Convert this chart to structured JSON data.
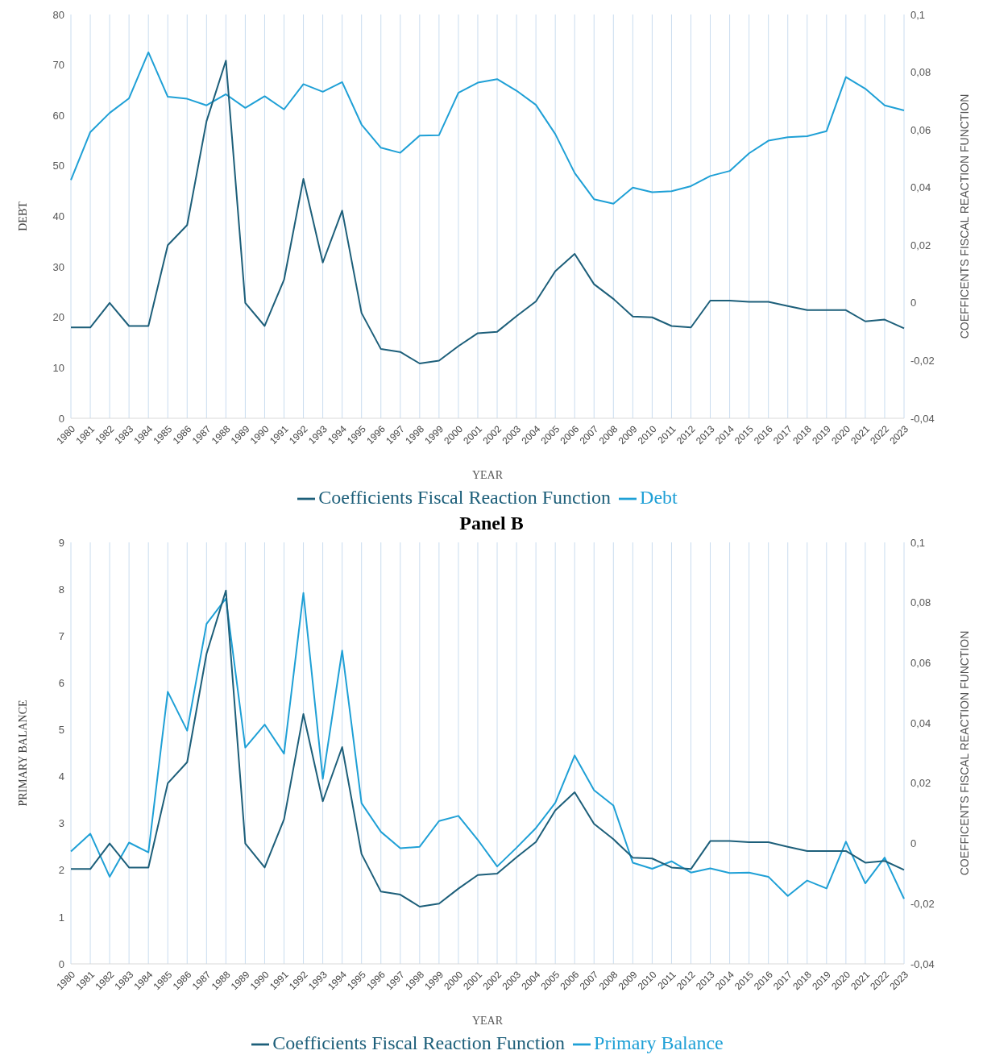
{
  "chart_data": [
    {
      "type": "line",
      "xlabel": "YEAR",
      "ylabel": "DEBT",
      "y2label": "COEFFICENTS FISCAL REACTION FUNCTION",
      "categories": [
        "1980",
        "1981",
        "1982",
        "1983",
        "1984",
        "1985",
        "1986",
        "1987",
        "1988",
        "1989",
        "1990",
        "1991",
        "1992",
        "1993",
        "1994",
        "1995",
        "1996",
        "1997",
        "1998",
        "1999",
        "2000",
        "2001",
        "2002",
        "2003",
        "2004",
        "2005",
        "2006",
        "2007",
        "2008",
        "2009",
        "2010",
        "2011",
        "2012",
        "2013",
        "2014",
        "2015",
        "2016",
        "2017",
        "2018",
        "2019",
        "2020",
        "2021",
        "2022",
        "2023"
      ],
      "series": [
        {
          "name": "Debt",
          "color": "#1fa0d6",
          "values": [
            47.2,
            56.7,
            60.5,
            63.4,
            72.5,
            63.7,
            63.3,
            62.0,
            64.2,
            61.5,
            63.8,
            61.2,
            66.2,
            64.7,
            66.6,
            58.2,
            53.6,
            52.6,
            56.0,
            56.1,
            64.5,
            66.5,
            67.2,
            64.9,
            62.1,
            56.3,
            48.6,
            43.4,
            42.5,
            45.7,
            44.8,
            45.0,
            46.0,
            48.0,
            49.0,
            52.5,
            55.0,
            55.7,
            55.9,
            56.9,
            67.6,
            65.3,
            62.0,
            61.0
          ]
        },
        {
          "name": "Coefficients Fiscal Reaction Function",
          "color": "#1d5f7a",
          "axis": "y2",
          "values": [
            -0.0085,
            -0.0085,
            0.0,
            -0.008,
            -0.008,
            0.02,
            0.027,
            0.063,
            0.084,
            0.0,
            -0.008,
            0.008,
            0.043,
            0.014,
            0.032,
            -0.0035,
            -0.016,
            -0.017,
            -0.021,
            -0.02,
            -0.015,
            -0.0105,
            -0.01,
            -0.0046,
            0.0005,
            0.011,
            0.017,
            0.0065,
            0.0014,
            -0.0047,
            -0.005,
            -0.008,
            -0.0085,
            0.0008,
            0.0008,
            0.0004,
            0.0004,
            -0.0011,
            -0.0025,
            -0.0025,
            -0.0025,
            -0.0064,
            -0.0058,
            -0.0088
          ]
        }
      ],
      "ylim": [
        0,
        80
      ],
      "yticks": [
        0,
        10,
        20,
        30,
        40,
        50,
        60,
        70,
        80
      ],
      "y2lim": [
        -0.04,
        0.1
      ],
      "y2ticks": [
        {
          "value": -0.04,
          "label": "-0,04"
        },
        {
          "value": -0.02,
          "label": "-0,02"
        },
        {
          "value": 0,
          "label": "0"
        },
        {
          "value": 0.02,
          "label": "0,02"
        },
        {
          "value": 0.04,
          "label": "0,04"
        },
        {
          "value": 0.06,
          "label": "0,06"
        },
        {
          "value": 0.08,
          "label": "0,08"
        },
        {
          "value": 0.1,
          "label": "0,1"
        }
      ],
      "grid": "x",
      "legend": "bottom",
      "marker": "none",
      "line_style": "solid"
    },
    {
      "type": "line",
      "title": "Panel B",
      "xlabel": "YEAR",
      "ylabel": "PRIMARY BALANCE",
      "y2label": "COEFFICENTS FISCAL REACTION FUNCTION",
      "categories": [
        "1980",
        "1981",
        "1982",
        "1983",
        "1984",
        "1985",
        "1986",
        "1987",
        "1988",
        "1989",
        "1990",
        "1991",
        "1992",
        "1993",
        "1994",
        "1995",
        "1996",
        "1997",
        "1998",
        "1999",
        "2000",
        "2001",
        "2002",
        "2003",
        "2004",
        "2005",
        "2006",
        "2007",
        "2008",
        "2009",
        "2010",
        "2011",
        "2012",
        "2013",
        "2014",
        "2015",
        "2016",
        "2017",
        "2018",
        "2019",
        "2020",
        "2021",
        "2022",
        "2023"
      ],
      "series": [
        {
          "name": "Primary Balance",
          "color": "#1fa0d6",
          "values": [
            2.4,
            2.78,
            1.86,
            2.59,
            2.38,
            5.81,
            4.98,
            7.26,
            7.8,
            4.62,
            5.11,
            4.49,
            7.92,
            3.95,
            6.69,
            3.43,
            2.82,
            2.47,
            2.5,
            3.05,
            3.16,
            2.65,
            2.08,
            2.48,
            2.9,
            3.44,
            4.45,
            3.71,
            3.38,
            2.16,
            2.03,
            2.19,
            1.95,
            2.04,
            1.94,
            1.95,
            1.86,
            1.45,
            1.78,
            1.61,
            2.61,
            1.72,
            2.27,
            1.39
          ]
        },
        {
          "name": "Coefficients Fiscal Reaction Function",
          "color": "#1d5f7a",
          "axis": "y2",
          "values": [
            -0.0085,
            -0.0085,
            0.0,
            -0.008,
            -0.008,
            0.02,
            0.027,
            0.063,
            0.084,
            0.0,
            -0.008,
            0.008,
            0.043,
            0.014,
            0.032,
            -0.0035,
            -0.016,
            -0.017,
            -0.021,
            -0.02,
            -0.015,
            -0.0105,
            -0.01,
            -0.0046,
            0.0005,
            0.011,
            0.017,
            0.0065,
            0.0014,
            -0.0047,
            -0.005,
            -0.008,
            -0.0085,
            0.0008,
            0.0008,
            0.0004,
            0.0004,
            -0.0011,
            -0.0025,
            -0.0025,
            -0.0025,
            -0.0064,
            -0.0058,
            -0.0088
          ]
        }
      ],
      "ylim": [
        0,
        9
      ],
      "yticks": [
        0,
        1,
        2,
        3,
        4,
        5,
        6,
        7,
        8,
        9
      ],
      "y2lim": [
        -0.04,
        0.1
      ],
      "y2ticks": [
        {
          "value": -0.04,
          "label": "-0,04"
        },
        {
          "value": -0.02,
          "label": "-0,02"
        },
        {
          "value": 0,
          "label": "0"
        },
        {
          "value": 0.02,
          "label": "0,02"
        },
        {
          "value": 0.04,
          "label": "0,04"
        },
        {
          "value": 0.06,
          "label": "0,06"
        },
        {
          "value": 0.08,
          "label": "0,08"
        },
        {
          "value": 0.1,
          "label": "0,1"
        }
      ],
      "grid": "x",
      "legend": "bottom",
      "marker": "none",
      "line_style": "solid"
    }
  ]
}
